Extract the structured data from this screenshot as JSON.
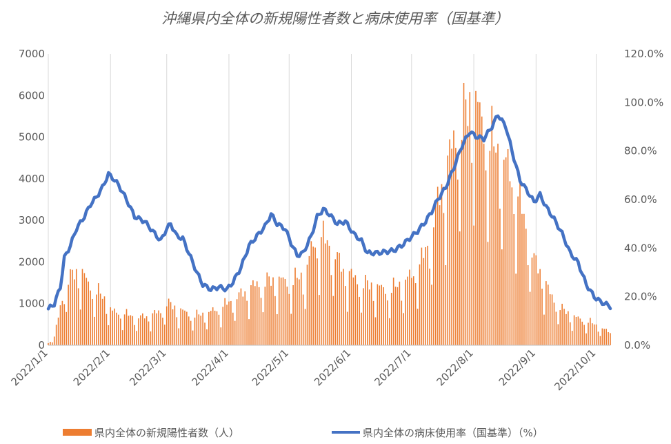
{
  "chart_data": {
    "type": "bar+line",
    "title": "沖縄県内全体の新規陽性者数と病床使用率（国基準）",
    "x_tick_labels": [
      "2022/1/1",
      "2022/2/1",
      "2022/3/1",
      "2022/4/1",
      "2022/5/1",
      "2022/6/1",
      "2022/7/1",
      "2022/8/1",
      "2022/9/1",
      "2022/10/1"
    ],
    "y_left": {
      "ylim": [
        0,
        7000
      ],
      "ticks": [
        "0",
        "1000",
        "2000",
        "3000",
        "4000",
        "5000",
        "6000",
        "7000"
      ]
    },
    "y_right": {
      "ylim": [
        0,
        120
      ],
      "ticks": [
        "0.0%",
        "20.0%",
        "40.0%",
        "60.0%",
        "80.0%",
        "100.0%",
        "120.0%"
      ]
    },
    "x_range": [
      "2022/1/1",
      "2022/10/8"
    ],
    "grid": "vertical",
    "legend_position": "bottom",
    "series": [
      {
        "name": "県内全体の新規陽性者数（人）",
        "kind": "bar",
        "axis": "left",
        "color": "#ed7d31",
        "anchors": [
          [
            "2022/1/1",
            50
          ],
          [
            "2022/1/4",
            200
          ],
          [
            "2022/1/7",
            900
          ],
          [
            "2022/1/10",
            1500
          ],
          [
            "2022/1/14",
            1700
          ],
          [
            "2022/1/17",
            1800
          ],
          [
            "2022/1/21",
            1450
          ],
          [
            "2022/1/25",
            1300
          ],
          [
            "2022/1/29",
            1100
          ],
          [
            "2022/2/2",
            800
          ],
          [
            "2022/2/8",
            750
          ],
          [
            "2022/2/14",
            650
          ],
          [
            "2022/2/20",
            700
          ],
          [
            "2022/2/26",
            800
          ],
          [
            "2022/3/1",
            1000
          ],
          [
            "2022/3/7",
            850
          ],
          [
            "2022/3/14",
            700
          ],
          [
            "2022/3/21",
            750
          ],
          [
            "2022/3/28",
            900
          ],
          [
            "2022/4/4",
            1100
          ],
          [
            "2022/4/11",
            1350
          ],
          [
            "2022/4/18",
            1500
          ],
          [
            "2022/4/25",
            1550
          ],
          [
            "2022/5/2",
            1500
          ],
          [
            "2022/5/9",
            1700
          ],
          [
            "2022/5/13",
            2400
          ],
          [
            "2022/5/17",
            2600
          ],
          [
            "2022/5/22",
            2300
          ],
          [
            "2022/5/28",
            1800
          ],
          [
            "2022/6/5",
            1500
          ],
          [
            "2022/6/12",
            1400
          ],
          [
            "2022/6/20",
            1300
          ],
          [
            "2022/6/27",
            1500
          ],
          [
            "2022/7/1",
            1650
          ],
          [
            "2022/7/6",
            2000
          ],
          [
            "2022/7/10",
            2500
          ],
          [
            "2022/7/15",
            3600
          ],
          [
            "2022/7/19",
            4300
          ],
          [
            "2022/7/23",
            5000
          ],
          [
            "2022/7/28",
            5500
          ],
          [
            "2022/8/1",
            5900
          ],
          [
            "2022/8/4",
            5400
          ],
          [
            "2022/8/10",
            4800
          ],
          [
            "2022/8/17",
            4300
          ],
          [
            "2022/8/24",
            3400
          ],
          [
            "2022/8/31",
            2000
          ],
          [
            "2022/9/4",
            1700
          ],
          [
            "2022/9/8",
            1200
          ],
          [
            "2022/9/14",
            850
          ],
          [
            "2022/9/21",
            650
          ],
          [
            "2022/9/28",
            550
          ],
          [
            "2022/10/4",
            400
          ],
          [
            "2022/10/8",
            300
          ]
        ]
      },
      {
        "name": "県内全体の病床使用率（国基準）（%）",
        "kind": "line",
        "axis": "right",
        "color": "#4472c4",
        "anchors": [
          [
            "2022/1/1",
            15
          ],
          [
            "2022/1/4",
            17
          ],
          [
            "2022/1/7",
            24
          ],
          [
            "2022/1/9",
            36
          ],
          [
            "2022/1/12",
            41
          ],
          [
            "2022/1/15",
            48
          ],
          [
            "2022/1/19",
            53
          ],
          [
            "2022/1/22",
            58
          ],
          [
            "2022/1/25",
            61
          ],
          [
            "2022/1/28",
            65
          ],
          [
            "2022/1/31",
            70.5
          ],
          [
            "2022/2/2",
            69
          ],
          [
            "2022/2/5",
            66
          ],
          [
            "2022/2/9",
            60
          ],
          [
            "2022/2/13",
            53
          ],
          [
            "2022/2/18",
            51
          ],
          [
            "2022/2/22",
            47
          ],
          [
            "2022/2/26",
            43
          ],
          [
            "2022/3/1",
            48
          ],
          [
            "2022/3/3",
            50
          ],
          [
            "2022/3/6",
            45
          ],
          [
            "2022/3/9",
            44
          ],
          [
            "2022/3/12",
            38
          ],
          [
            "2022/3/16",
            30
          ],
          [
            "2022/3/19",
            25
          ],
          [
            "2022/3/23",
            23
          ],
          [
            "2022/3/27",
            24
          ],
          [
            "2022/3/31",
            23
          ],
          [
            "2022/4/3",
            26
          ],
          [
            "2022/4/7",
            32
          ],
          [
            "2022/4/11",
            41
          ],
          [
            "2022/4/15",
            45
          ],
          [
            "2022/4/19",
            49
          ],
          [
            "2022/4/22",
            54
          ],
          [
            "2022/4/25",
            50
          ],
          [
            "2022/4/29",
            48
          ],
          [
            "2022/5/2",
            42
          ],
          [
            "2022/5/5",
            37
          ],
          [
            "2022/5/8",
            38
          ],
          [
            "2022/5/12",
            45
          ],
          [
            "2022/5/15",
            53
          ],
          [
            "2022/5/18",
            56
          ],
          [
            "2022/5/21",
            54
          ],
          [
            "2022/5/25",
            50
          ],
          [
            "2022/5/29",
            51
          ],
          [
            "2022/6/2",
            46
          ],
          [
            "2022/6/6",
            43
          ],
          [
            "2022/6/9",
            38
          ],
          [
            "2022/6/14",
            38
          ],
          [
            "2022/6/18",
            38.5
          ],
          [
            "2022/6/22",
            39
          ],
          [
            "2022/6/26",
            41
          ],
          [
            "2022/6/30",
            44
          ],
          [
            "2022/7/4",
            47
          ],
          [
            "2022/7/8",
            51
          ],
          [
            "2022/7/11",
            55
          ],
          [
            "2022/7/14",
            60
          ],
          [
            "2022/7/18",
            65
          ],
          [
            "2022/7/22",
            73
          ],
          [
            "2022/7/26",
            82
          ],
          [
            "2022/7/30",
            88
          ],
          [
            "2022/8/2",
            86
          ],
          [
            "2022/8/6",
            85
          ],
          [
            "2022/8/10",
            90
          ],
          [
            "2022/8/13",
            95
          ],
          [
            "2022/8/17",
            90
          ],
          [
            "2022/8/20",
            80
          ],
          [
            "2022/8/24",
            68
          ],
          [
            "2022/8/28",
            63
          ],
          [
            "2022/8/31",
            59
          ],
          [
            "2022/9/3",
            62
          ],
          [
            "2022/9/6",
            57
          ],
          [
            "2022/9/10",
            52
          ],
          [
            "2022/9/14",
            46
          ],
          [
            "2022/9/18",
            38
          ],
          [
            "2022/9/22",
            34
          ],
          [
            "2022/9/26",
            25
          ],
          [
            "2022/9/30",
            20
          ],
          [
            "2022/10/3",
            18
          ],
          [
            "2022/10/8",
            16
          ]
        ]
      }
    ]
  }
}
